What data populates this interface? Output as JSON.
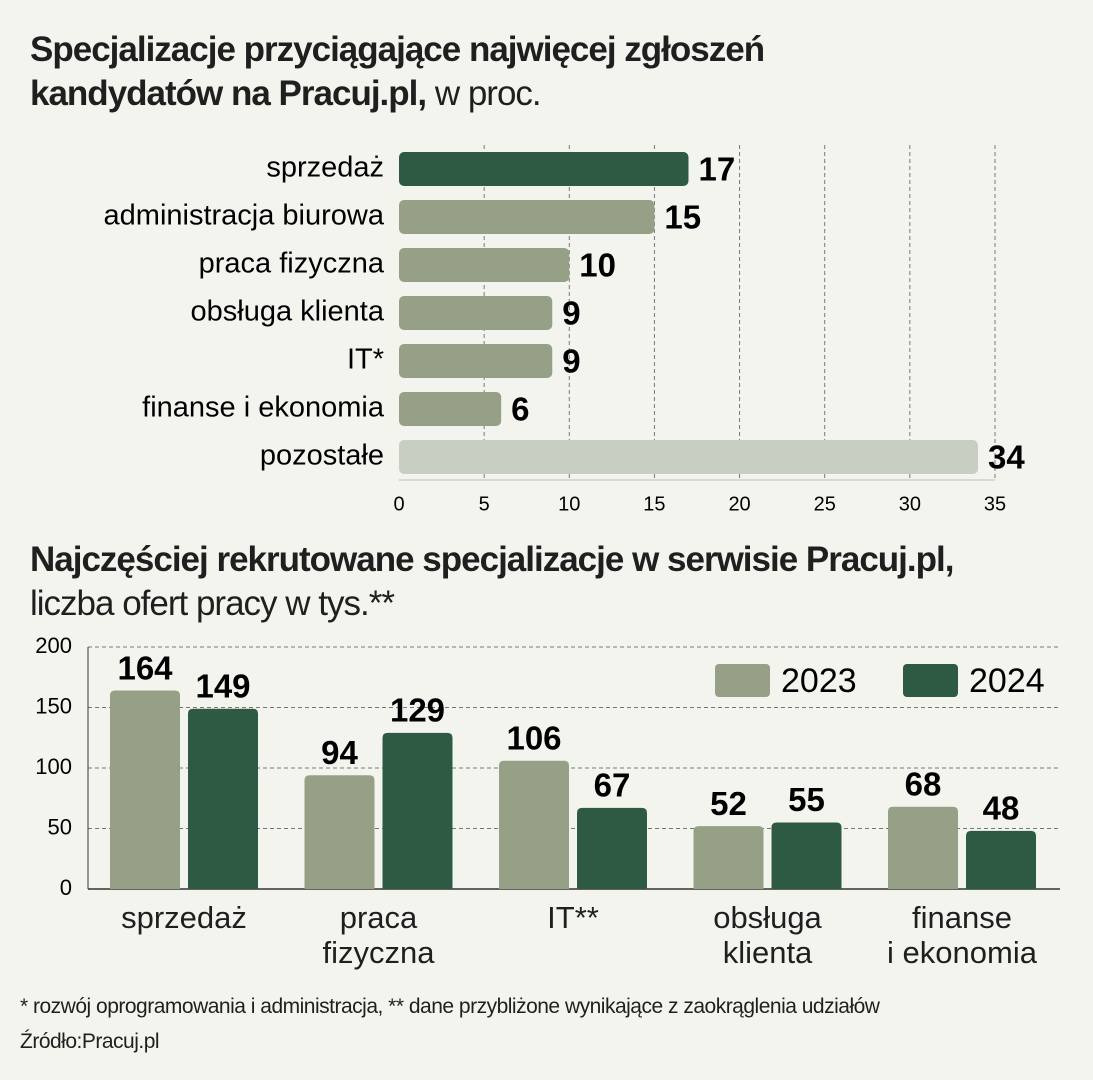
{
  "chart_data": [
    {
      "type": "bar",
      "orientation": "horizontal",
      "title": "Specjalizacje  przyciągające najwięcej zgłoszeń kandydatów  na Pracuj.pl,",
      "subtitle": "w proc.",
      "categories": [
        "sprzedaż",
        "administracja biurowa",
        "praca fizyczna",
        "obsługa klienta",
        "IT*",
        "finanse i ekonomia",
        "pozostałe"
      ],
      "values": [
        17,
        15,
        10,
        9,
        9,
        6,
        34
      ],
      "colors": [
        "#2e5a43",
        "#96a086",
        "#96a086",
        "#96a086",
        "#96a086",
        "#96a086",
        "#c9cec2"
      ],
      "xlim": [
        0,
        35
      ],
      "xticks": [
        0,
        5,
        10,
        15,
        20,
        25,
        30,
        35
      ],
      "grid": true
    },
    {
      "type": "grouped-bar",
      "title": "Najczęściej rekrutowane specjalizacje w serwisie Pracuj.pl,",
      "subtitle": "liczba ofert pracy w tys.**",
      "categories": [
        "sprzedaż",
        "praca\nfizyczna",
        "IT**",
        "obsługa\nklienta",
        "finanse\ni ekonomia"
      ],
      "series": [
        {
          "name": "2023",
          "color": "#96a086",
          "values": [
            164,
            94,
            106,
            52,
            68
          ]
        },
        {
          "name": "2024",
          "color": "#2e5a43",
          "values": [
            149,
            129,
            67,
            55,
            48
          ]
        }
      ],
      "ylim": [
        0,
        200
      ],
      "yticks": [
        0,
        50,
        100,
        150,
        200
      ],
      "grid": true,
      "legend_position": "upper right"
    }
  ],
  "footnotes": [
    "* rozwój oprogramowania i administracja, ** dane przybliżone wynikające z zaokrąglenia udziałów",
    "Źródło:Pracuj.pl"
  ]
}
